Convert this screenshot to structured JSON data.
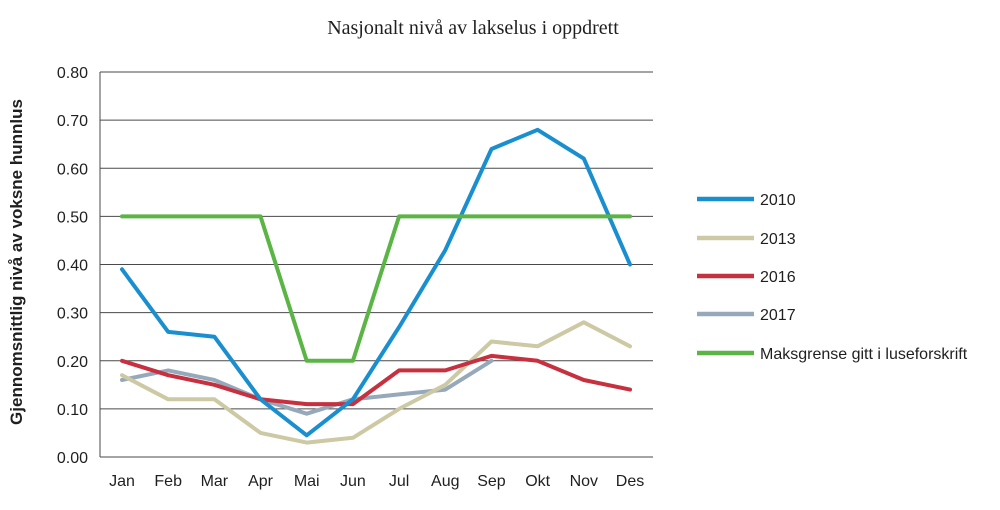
{
  "chart_data": {
    "type": "line",
    "title": "Nasjonalt nivå av lakselus i oppdrett",
    "xlabel": "",
    "ylabel": "Gjennomsnittlig nivå av voksne hunnlus",
    "ylim": [
      0,
      0.8
    ],
    "yticks": [
      "0.00",
      "0.10",
      "0.20",
      "0.30",
      "0.40",
      "0.50",
      "0.60",
      "0.70",
      "0.80"
    ],
    "categories": [
      "Jan",
      "Feb",
      "Mar",
      "Apr",
      "Mai",
      "Jun",
      "Jul",
      "Aug",
      "Sep",
      "Okt",
      "Nov",
      "Des"
    ],
    "grid": true,
    "legend_position": "right",
    "series": [
      {
        "name": "2010",
        "color": "#1a8fd0",
        "values": [
          0.39,
          0.26,
          0.25,
          0.12,
          0.045,
          0.12,
          0.27,
          0.43,
          0.64,
          0.68,
          0.62,
          0.4
        ]
      },
      {
        "name": "2013",
        "color": "#cdc9a4",
        "values": [
          0.17,
          0.12,
          0.12,
          0.05,
          0.03,
          0.04,
          0.1,
          0.15,
          0.24,
          0.23,
          0.28,
          0.23
        ]
      },
      {
        "name": "2016",
        "color": "#c6303f",
        "values": [
          0.2,
          0.17,
          0.15,
          0.12,
          0.11,
          0.11,
          0.18,
          0.18,
          0.21,
          0.2,
          0.16,
          0.14
        ]
      },
      {
        "name": "2017",
        "color": "#96a9bb",
        "values": [
          0.16,
          0.18,
          0.16,
          0.12,
          0.09,
          0.12,
          0.13,
          0.14,
          0.2,
          null,
          null,
          null
        ]
      },
      {
        "name": "Maksgrense gitt i luseforskrift",
        "color": "#5bb545",
        "values": [
          0.5,
          0.5,
          0.5,
          0.5,
          0.2,
          0.2,
          0.5,
          0.5,
          0.5,
          0.5,
          0.5,
          0.5
        ]
      }
    ]
  }
}
